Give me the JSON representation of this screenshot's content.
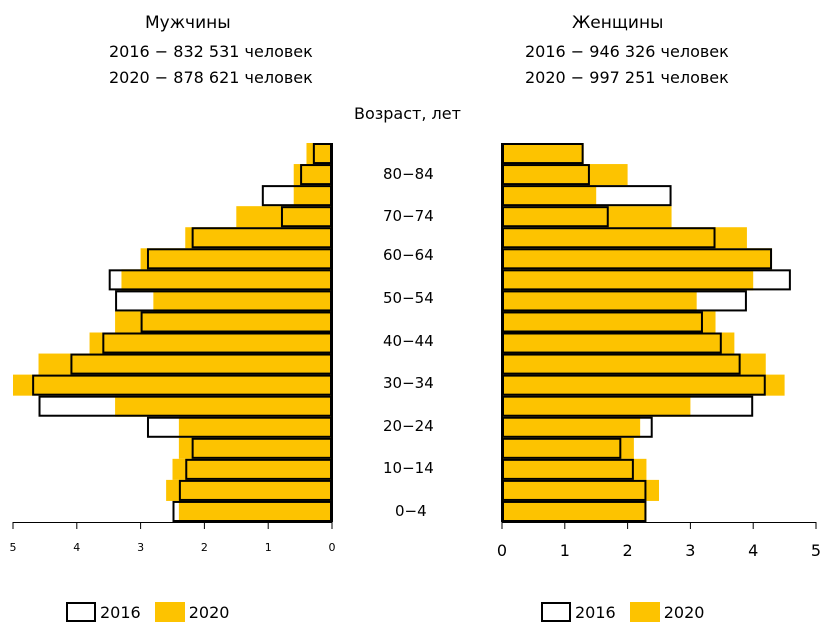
{
  "colors": {
    "y2016_border": "#000000",
    "y2020_fill": "#fdc300"
  },
  "age_axis_title": "Возраст, лет",
  "age_labels": [
    "80−84",
    "70−74",
    "60−64",
    "50−54",
    "40−44",
    "30−34",
    "20−24",
    "10−14",
    "0−4"
  ],
  "men": {
    "title": "Мужчины",
    "line1": "2016 − 832 531 человек",
    "line2": "2020 − 878 621 человек",
    "legend_2016": "2016",
    "legend_2020": "2020"
  },
  "women": {
    "title": "Женщины",
    "line1": "2016 − 946 326 человек",
    "line2": "2020 − 997 251 человек",
    "legend_2016": "2016",
    "legend_2020": "2020"
  },
  "chart_data": [
    {
      "type": "bar",
      "orientation": "horizontal",
      "panel": "Мужчины",
      "categories_bottom_to_top": [
        "0-4",
        "5-9",
        "10-14",
        "15-19",
        "20-24",
        "25-29",
        "30-34",
        "35-39",
        "40-44",
        "45-49",
        "50-54",
        "55-59",
        "60-64",
        "65-69",
        "70-74",
        "75-79",
        "80-84",
        "85+"
      ],
      "series": [
        {
          "name": "2016",
          "values": [
            2.5,
            2.4,
            2.3,
            2.2,
            2.9,
            4.6,
            4.7,
            4.1,
            3.6,
            3.0,
            3.4,
            3.5,
            2.9,
            2.2,
            0.8,
            1.1,
            0.5,
            0.3
          ]
        },
        {
          "name": "2020",
          "values": [
            2.4,
            2.6,
            2.5,
            2.4,
            2.4,
            3.4,
            5.0,
            4.6,
            3.8,
            3.4,
            2.8,
            3.3,
            3.0,
            2.3,
            1.5,
            0.6,
            0.6,
            0.4
          ]
        }
      ],
      "x_ticks": [
        "5",
        "4",
        "3",
        "2",
        "1",
        "0"
      ],
      "xlim": [
        5,
        0
      ]
    },
    {
      "type": "bar",
      "orientation": "horizontal",
      "panel": "Женщины",
      "categories_bottom_to_top": [
        "0-4",
        "5-9",
        "10-14",
        "15-19",
        "20-24",
        "25-29",
        "30-34",
        "35-39",
        "40-44",
        "45-49",
        "50-54",
        "55-59",
        "60-64",
        "65-69",
        "70-74",
        "75-79",
        "80-84",
        "85+"
      ],
      "series": [
        {
          "name": "2016",
          "values": [
            2.3,
            2.3,
            2.1,
            1.9,
            2.4,
            4.0,
            4.2,
            3.8,
            3.5,
            3.2,
            3.9,
            4.6,
            4.3,
            3.4,
            1.7,
            2.7,
            1.4,
            1.3
          ]
        },
        {
          "name": "2020",
          "values": [
            2.3,
            2.5,
            2.3,
            2.1,
            2.2,
            3.0,
            4.5,
            4.2,
            3.7,
            3.4,
            3.1,
            4.0,
            4.3,
            3.9,
            2.7,
            1.5,
            2.0,
            1.3
          ]
        }
      ],
      "x_ticks": [
        "0",
        "1",
        "2",
        "3",
        "4",
        "5"
      ],
      "xlim": [
        0,
        5
      ]
    }
  ]
}
